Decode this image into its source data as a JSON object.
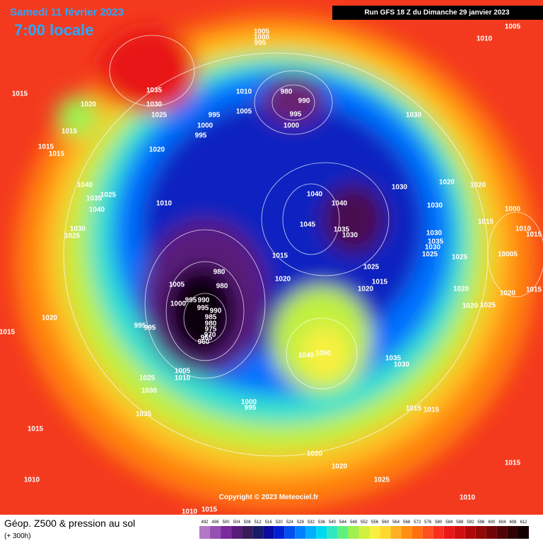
{
  "header": {
    "date": "Samedi 11 février 2023",
    "time": "7:00 locale",
    "run": "Run GFS 18 Z du Dimanche 29 janvier 2023"
  },
  "map": {
    "isobar_labels": [
      "1005",
      "1000",
      "995",
      "1005",
      "1010",
      "1015",
      "1035",
      "1030",
      "1025",
      "1020",
      "1015",
      "1010",
      "980",
      "990",
      "995",
      "1000",
      "1005",
      "995",
      "1000",
      "995",
      "1015",
      "1015",
      "1020",
      "1030",
      "1040",
      "1040",
      "1030",
      "1020",
      "1020",
      "1000",
      "1030",
      "1045",
      "1035",
      "1030",
      "1015",
      "1010",
      "1015",
      "1040",
      "1025",
      "1035",
      "1040",
      "1010",
      "1030",
      "1025",
      "1030",
      "1035",
      "1030",
      "1025",
      "1025",
      "10005",
      "1015",
      "1025",
      "1015",
      "1020",
      "1020",
      "1020",
      "1020",
      "1015",
      "1020",
      "1025",
      "980",
      "980",
      "1005",
      "1000",
      "995",
      "990",
      "995",
      "990",
      "985",
      "980",
      "975",
      "970",
      "965",
      "960",
      "995",
      "995",
      "1015",
      "1020",
      "1040",
      "1050",
      "1035",
      "1030",
      "1005",
      "1010",
      "1025",
      "1030",
      "1035",
      "1015",
      "1000",
      "995",
      "1015",
      "1015",
      "1020",
      "1020",
      "1025",
      "1015",
      "1010",
      "1010",
      "1010",
      "1015"
    ],
    "copyright": "Copyright © 2023 Meteociel.fr"
  },
  "legend": {
    "title": "Géop. Z500 & pression au sol",
    "lead": "(+ 300h)",
    "scale": [
      "492",
      "496",
      "500",
      "504",
      "508",
      "512",
      "516",
      "520",
      "524",
      "528",
      "532",
      "536",
      "540",
      "544",
      "548",
      "552",
      "556",
      "560",
      "564",
      "568",
      "572",
      "576",
      "580",
      "584",
      "588",
      "592",
      "596",
      "600",
      "604",
      "608",
      "612"
    ],
    "colors": [
      "#b478c8",
      "#9650b4",
      "#7a2a9a",
      "#5a1a7a",
      "#3a1a5a",
      "#1a1a6a",
      "#0a0aa0",
      "#0020d0",
      "#0050f0",
      "#0080ff",
      "#00b0ff",
      "#00d8f0",
      "#30e8c0",
      "#60f080",
      "#a0f050",
      "#d0f040",
      "#f8f040",
      "#ffd830",
      "#ffb020",
      "#ff9010",
      "#ff7010",
      "#ff5020",
      "#f83020",
      "#e81818",
      "#d01010",
      "#b00808",
      "#900808",
      "#700408",
      "#500408",
      "#300004",
      "#100000"
    ]
  }
}
